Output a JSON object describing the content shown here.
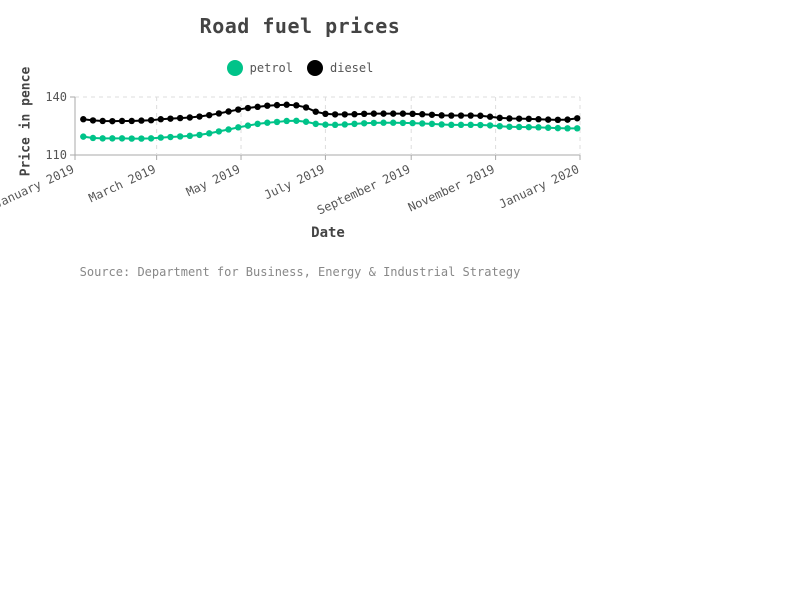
{
  "chart_data": {
    "type": "line",
    "title": "Road fuel prices",
    "xlabel": "Date",
    "ylabel": "Price in pence",
    "source": "Source: Department for Business, Energy & Industrial Strategy",
    "x_start": "2019-01-07",
    "x_step_days": 7,
    "x_domain": [
      "2019-01-01",
      "2020-01-01"
    ],
    "x_ticks": [
      "January 2019",
      "March 2019",
      "May 2019",
      "July 2019",
      "September 2019",
      "November 2019",
      "January 2020"
    ],
    "x_tick_dates": [
      "2019-01-01",
      "2019-03-01",
      "2019-05-01",
      "2019-07-01",
      "2019-09-01",
      "2019-11-01",
      "2020-01-01"
    ],
    "ylim": [
      110,
      140
    ],
    "y_ticks": [
      110,
      140
    ],
    "grid": true,
    "legend_position": "top",
    "series": [
      {
        "name": "petrol",
        "color": "#00c389",
        "values": [
          119.5,
          118.8,
          118.6,
          118.6,
          118.6,
          118.5,
          118.5,
          118.6,
          119.0,
          119.3,
          119.6,
          119.9,
          120.4,
          121.2,
          122.2,
          123.2,
          124.3,
          125.2,
          126.1,
          126.7,
          127.1,
          127.6,
          127.7,
          127.2,
          126.1,
          125.7,
          125.6,
          125.8,
          126.1,
          126.4,
          126.6,
          126.7,
          126.7,
          126.6,
          126.5,
          126.3,
          126.1,
          125.8,
          125.6,
          125.6,
          125.6,
          125.5,
          125.3,
          124.9,
          124.6,
          124.5,
          124.4,
          124.3,
          124.1,
          123.9,
          123.8,
          123.8
        ]
      },
      {
        "name": "diesel",
        "color": "#000000",
        "values": [
          128.5,
          127.9,
          127.6,
          127.5,
          127.6,
          127.6,
          127.8,
          128.0,
          128.5,
          128.8,
          129.1,
          129.4,
          129.9,
          130.6,
          131.5,
          132.5,
          133.5,
          134.3,
          134.9,
          135.5,
          135.8,
          136.0,
          135.7,
          134.6,
          132.4,
          131.3,
          131.0,
          131.0,
          131.1,
          131.3,
          131.4,
          131.4,
          131.4,
          131.4,
          131.3,
          131.1,
          130.8,
          130.5,
          130.4,
          130.4,
          130.4,
          130.3,
          129.8,
          129.2,
          128.9,
          128.8,
          128.7,
          128.5,
          128.3,
          128.2,
          128.3,
          129.0
        ]
      }
    ]
  }
}
